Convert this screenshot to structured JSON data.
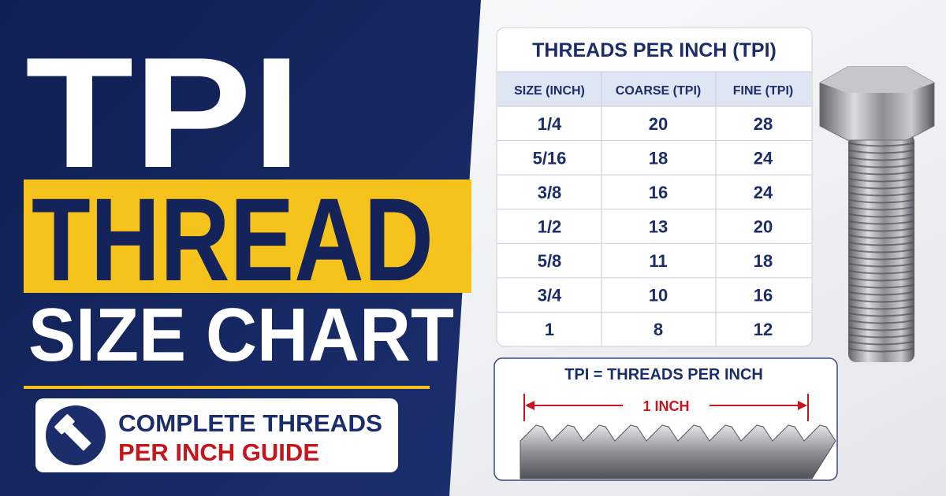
{
  "header": {
    "line1": "TPI",
    "line2": "THREAD",
    "line3": "SIZE CHART"
  },
  "badge": {
    "line1": "COMPLETE THREADS",
    "line2": "PER INCH GUIDE"
  },
  "table": {
    "title": "THREADS PER INCH (TPI)",
    "headers": [
      "SIZE (INCH)",
      "COARSE (TPI)",
      "FINE (TPI)"
    ],
    "rows": [
      [
        "1/4",
        20,
        28
      ],
      [
        "5/16",
        18,
        24
      ],
      [
        "3/8",
        16,
        24
      ],
      [
        "1/2",
        13,
        20
      ],
      [
        "5/8",
        11,
        18
      ],
      [
        "3/4",
        10,
        16
      ],
      [
        "1",
        8,
        12
      ]
    ]
  },
  "diagram": {
    "label": "TPI = THREADS PER INCH",
    "measure": "1 INCH"
  }
}
